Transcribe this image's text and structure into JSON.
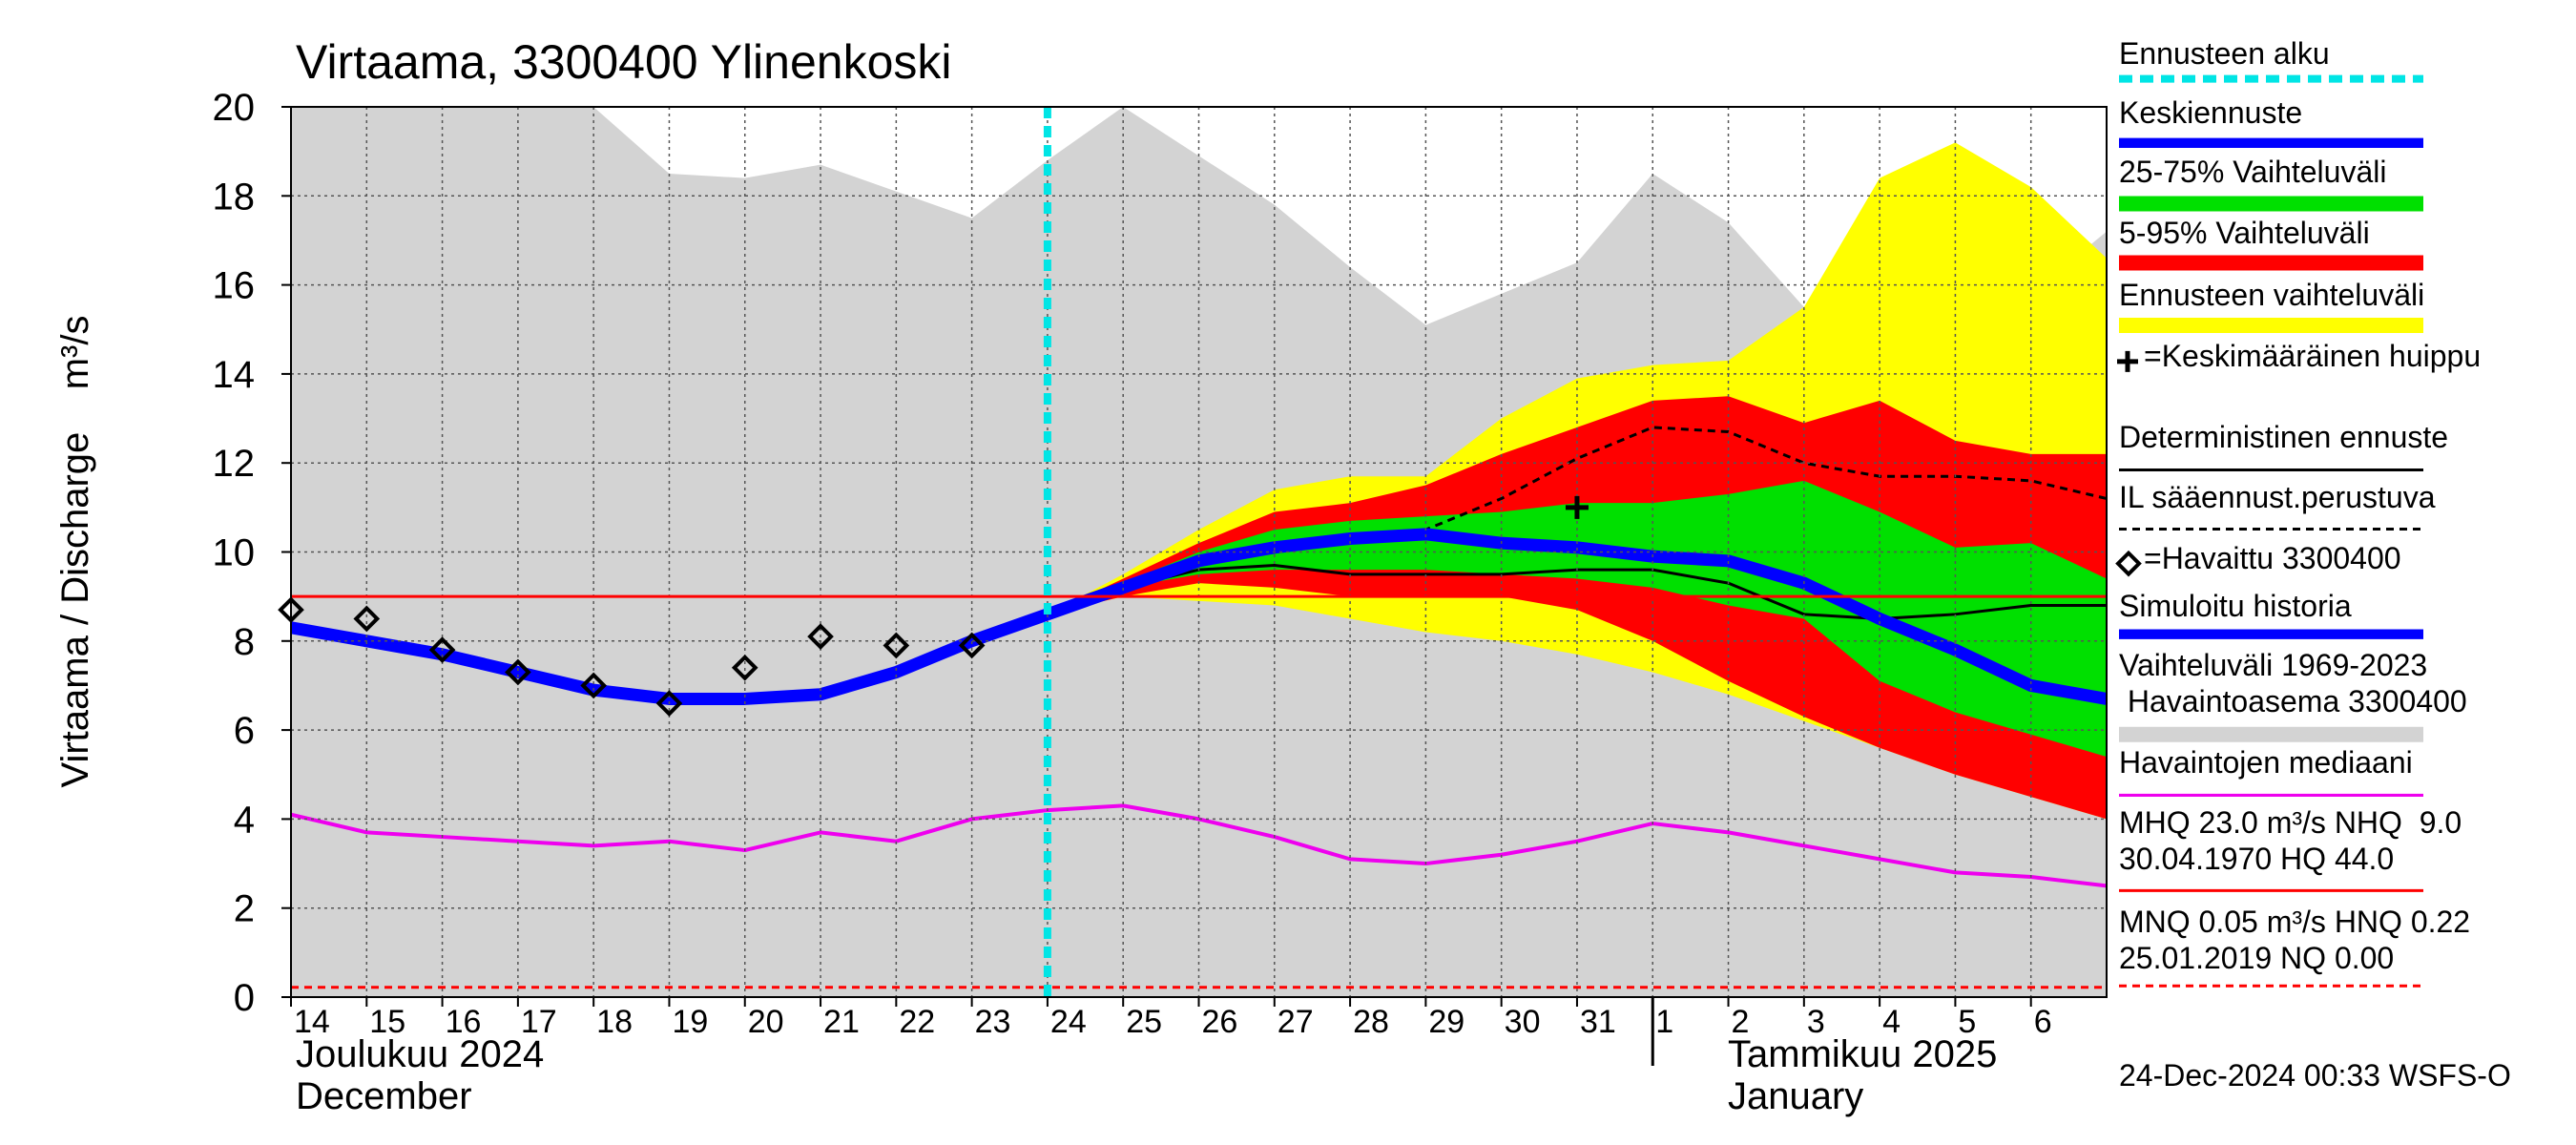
{
  "chart_data": {
    "type": "hydrograph",
    "title": "Virtaama, 3300400 Ylinenkoski",
    "y_label": "Virtaama / Discharge    m³/s",
    "footer": "24-Dec-2024 00:33 WSFS-O",
    "month_labels": [
      "Joulukuu  2024",
      "December",
      "Tammikuu  2025",
      "January"
    ],
    "month_break": 18,
    "xlim": [
      0,
      24
    ],
    "ylim": [
      0,
      20
    ],
    "yticks": [
      0,
      2,
      4,
      6,
      8,
      10,
      12,
      14,
      16,
      18,
      20
    ],
    "xticks": [
      {
        "value": 0,
        "label": "14"
      },
      {
        "value": 1,
        "label": "15"
      },
      {
        "value": 2,
        "label": "16"
      },
      {
        "value": 3,
        "label": "17"
      },
      {
        "value": 4,
        "label": "18"
      },
      {
        "value": 5,
        "label": "19"
      },
      {
        "value": 6,
        "label": "20"
      },
      {
        "value": 7,
        "label": "21"
      },
      {
        "value": 8,
        "label": "22"
      },
      {
        "value": 9,
        "label": "23"
      },
      {
        "value": 10,
        "label": "24"
      },
      {
        "value": 11,
        "label": "25"
      },
      {
        "value": 12,
        "label": "26"
      },
      {
        "value": 13,
        "label": "27"
      },
      {
        "value": 14,
        "label": "28"
      },
      {
        "value": 15,
        "label": "29"
      },
      {
        "value": 16,
        "label": "30"
      },
      {
        "value": 17,
        "label": "31"
      },
      {
        "value": 18,
        "label": "1"
      },
      {
        "value": 19,
        "label": "2"
      },
      {
        "value": 20,
        "label": "3"
      },
      {
        "value": 21,
        "label": "4"
      },
      {
        "value": 22,
        "label": "5"
      },
      {
        "value": 23,
        "label": "6"
      }
    ],
    "grid": true,
    "series": [
      {
        "name": "Ennusteen alku",
        "kind": "vline",
        "color": "#00e5e5",
        "dash": true,
        "x": [
          10
        ]
      },
      {
        "name": "Keskiennuste",
        "kind": "line",
        "color": "#0000ff",
        "width": 13,
        "x": [
          10,
          11,
          12,
          13,
          14,
          15,
          16,
          17,
          18,
          19,
          20,
          21,
          22,
          23,
          24
        ],
        "values": [
          8.6,
          9.2,
          9.8,
          10.1,
          10.3,
          10.4,
          10.2,
          10.1,
          9.9,
          9.8,
          9.3,
          8.5,
          7.8,
          7.0,
          6.7
        ]
      },
      {
        "name": "25-75% Vaihteluväli",
        "kind": "band",
        "color": "#00e000",
        "x": [
          10,
          11,
          12,
          13,
          14,
          15,
          16,
          17,
          18,
          19,
          20,
          21,
          22,
          23,
          24
        ],
        "low": [
          8.6,
          9.2,
          9.5,
          9.6,
          9.6,
          9.6,
          9.5,
          9.4,
          9.2,
          8.8,
          8.5,
          7.1,
          6.4,
          5.9,
          5.4
        ],
        "high": [
          8.6,
          9.3,
          10.0,
          10.5,
          10.7,
          10.8,
          10.9,
          11.1,
          11.1,
          11.3,
          11.6,
          10.9,
          10.1,
          10.2,
          9.4
        ]
      },
      {
        "name": "5-95% Vaihteluväli",
        "kind": "band",
        "color": "#ff0000",
        "x": [
          10,
          11,
          12,
          13,
          14,
          15,
          16,
          17,
          18,
          19,
          20,
          21,
          22,
          23,
          24
        ],
        "low": [
          8.6,
          9.0,
          9.3,
          9.2,
          9.0,
          9.0,
          9.0,
          8.7,
          8.0,
          7.1,
          6.3,
          5.6,
          5.0,
          4.5,
          4.0
        ],
        "high": [
          8.6,
          9.4,
          10.2,
          10.9,
          11.1,
          11.5,
          12.2,
          12.8,
          13.4,
          13.5,
          12.9,
          13.4,
          12.5,
          12.2,
          12.2
        ]
      },
      {
        "name": "Ennusteen vaihteluväli",
        "kind": "band",
        "color": "#ffff00",
        "x": [
          10,
          11,
          12,
          13,
          14,
          15,
          16,
          17,
          18,
          19,
          20,
          21,
          22,
          23,
          24
        ],
        "low": [
          8.6,
          9.0,
          8.9,
          8.8,
          8.5,
          8.2,
          8.0,
          7.7,
          7.3,
          6.8,
          6.2,
          5.6,
          5.0,
          4.5,
          4.0
        ],
        "high": [
          8.6,
          9.5,
          10.5,
          11.4,
          11.7,
          11.7,
          13.0,
          13.9,
          14.2,
          14.3,
          15.5,
          18.4,
          19.2,
          18.2,
          16.6
        ]
      },
      {
        "name": "=Keskimääräinen huippu",
        "kind": "point",
        "color": "#000000",
        "x": [
          17
        ],
        "values": [
          11.0
        ]
      },
      {
        "name": "Deterministinen ennuste",
        "kind": "line",
        "color": "#000000",
        "width": 3,
        "x": [
          10,
          11,
          12,
          13,
          14,
          15,
          16,
          17,
          18,
          19,
          20,
          21,
          22,
          23,
          24
        ],
        "values": [
          8.6,
          9.2,
          9.6,
          9.7,
          9.5,
          9.5,
          9.5,
          9.6,
          9.6,
          9.3,
          8.6,
          8.5,
          8.6,
          8.8,
          8.8
        ]
      },
      {
        "name": "IL sääennust.perustuva",
        "kind": "line",
        "color": "#000000",
        "width": 3,
        "dash": true,
        "x": [
          10,
          11,
          12,
          13,
          14,
          15,
          16,
          17,
          18,
          19,
          20,
          21,
          22,
          23,
          24
        ],
        "values": [
          8.6,
          9.3,
          9.8,
          10.2,
          10.4,
          10.5,
          11.2,
          12.1,
          12.8,
          12.7,
          12.0,
          11.7,
          11.7,
          11.6,
          11.2
        ]
      },
      {
        "name": "=Havaittu 3300400",
        "kind": "marker",
        "color": "#000000",
        "x": [
          0,
          1,
          2,
          3,
          4,
          5,
          6,
          7,
          8,
          9
        ],
        "values": [
          8.7,
          8.5,
          7.8,
          7.3,
          7.0,
          6.6,
          7.4,
          8.1,
          7.9,
          7.9
        ]
      },
      {
        "name": "Simuloitu historia",
        "kind": "line",
        "color": "#0000ff",
        "width": 13,
        "x": [
          0,
          1,
          2,
          3,
          4,
          5,
          6,
          7,
          8,
          9,
          10
        ],
        "values": [
          8.3,
          8.0,
          7.7,
          7.3,
          6.9,
          6.7,
          6.7,
          6.8,
          7.3,
          8.0,
          8.6
        ]
      },
      {
        "name": "Vaihteluväli 1969-2023\n Havaintoasema 3300400",
        "kind": "area",
        "color": "#d3d3d3",
        "x": [
          0,
          1,
          2,
          3,
          4,
          5,
          6,
          7,
          8,
          9,
          10,
          11,
          12,
          13,
          14,
          15,
          16,
          17,
          18,
          19,
          20,
          21,
          22,
          23,
          24
        ],
        "values": [
          20,
          20,
          20,
          20,
          20,
          18.5,
          18.4,
          18.7,
          18.1,
          17.5,
          18.8,
          20,
          18.9,
          17.8,
          16.4,
          15.1,
          15.8,
          16.5,
          18.5,
          17.4,
          15.5,
          13.5,
          13.5,
          15.8,
          17.2
        ]
      },
      {
        "name": "Havaintojen mediaani",
        "kind": "line",
        "color": "#ee00ee",
        "width": 4,
        "x": [
          0,
          1,
          2,
          3,
          4,
          5,
          6,
          7,
          8,
          9,
          10,
          11,
          12,
          13,
          14,
          15,
          16,
          17,
          18,
          19,
          20,
          21,
          22,
          23,
          24
        ],
        "values": [
          4.1,
          3.7,
          3.6,
          3.5,
          3.4,
          3.5,
          3.3,
          3.7,
          3.5,
          4.0,
          4.2,
          4.3,
          4.0,
          3.6,
          3.1,
          3.0,
          3.2,
          3.5,
          3.9,
          3.7,
          3.4,
          3.1,
          2.8,
          2.7,
          2.5
        ]
      },
      {
        "name": "MHQ 23.0 m³/s NHQ  9.0\n30.04.1970 HQ 44.0",
        "kind": "hline",
        "color": "#ff0000",
        "values": [
          9.0
        ]
      },
      {
        "name": "MNQ 0.05 m³/s HNQ 0.22\n25.01.2019 NQ 0.00",
        "kind": "hline",
        "color": "#ff0000",
        "dash": true,
        "values": [
          0.22
        ]
      }
    ]
  }
}
